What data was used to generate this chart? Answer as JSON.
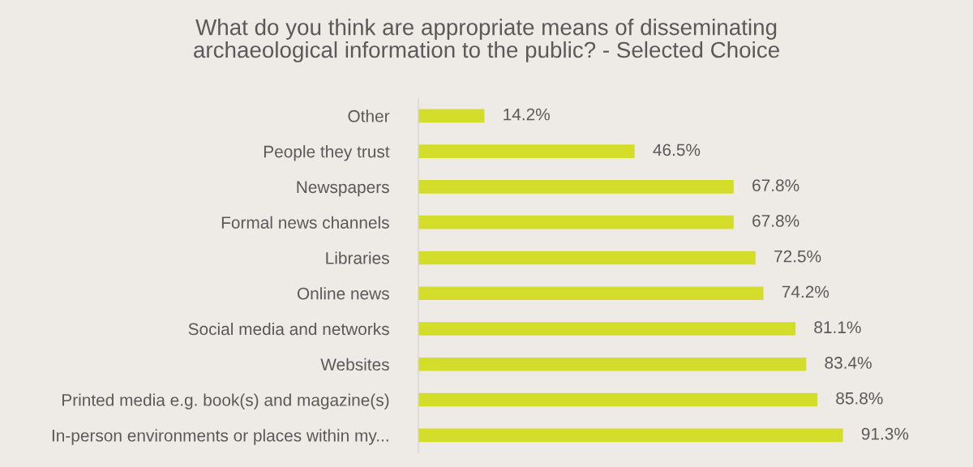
{
  "chart_data": {
    "type": "bar",
    "orientation": "horizontal",
    "title": "What do you think are appropriate means of disseminating\narchaeological information to the public? - Selected Choice",
    "categories": [
      "Other",
      "People they trust",
      "Newspapers",
      "Formal news channels",
      "Libraries",
      "Online news",
      "Social media and networks",
      "Websites",
      "Printed media e.g. book(s) and magazine(s)",
      "In-person environments or places within my..."
    ],
    "values": [
      14.2,
      46.5,
      67.8,
      67.8,
      72.5,
      74.2,
      81.1,
      83.4,
      85.8,
      91.3
    ],
    "value_labels": [
      "14.2%",
      "46.5%",
      "67.8%",
      "67.8%",
      "72.5%",
      "74.2%",
      "81.1%",
      "83.4%",
      "85.8%",
      "91.3%"
    ],
    "color": "#d4de2a",
    "tick_labels": "y",
    "grid": false,
    "legend": false
  }
}
